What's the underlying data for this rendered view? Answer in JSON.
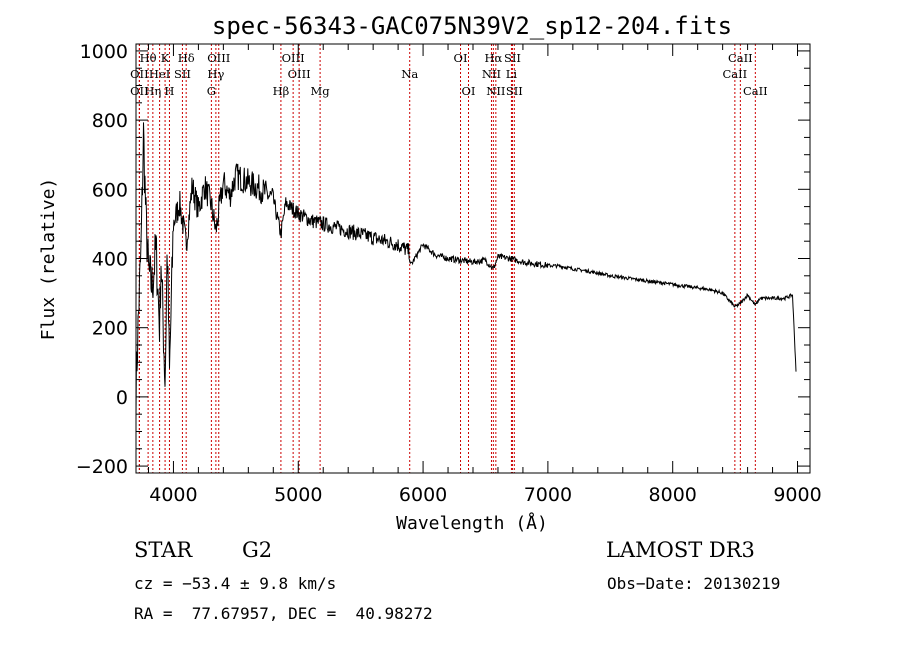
{
  "chart_data": {
    "type": "line",
    "title": "spec-56343-GAC075N39V2_sp12-204.fits",
    "xlabel": "Wavelength (Å)",
    "ylabel": "Flux (relative)",
    "xlim": [
      3700,
      9100
    ],
    "ylim": [
      -220,
      1020
    ],
    "xticks": [
      4000,
      5000,
      6000,
      7000,
      8000,
      9000
    ],
    "yticks": [
      -200,
      0,
      200,
      400,
      600,
      800,
      1000
    ],
    "xtick_labels": [
      "4000",
      "5000",
      "6000",
      "7000",
      "8000",
      "9000"
    ],
    "ytick_labels": [
      "−200",
      "0",
      "200",
      "400",
      "600",
      "800",
      "1000"
    ],
    "series": [
      {
        "name": "spectrum",
        "x": [
          3700,
          3720,
          3740,
          3760,
          3780,
          3800,
          3830,
          3860,
          3889,
          3900,
          3933,
          3950,
          3968,
          4000,
          4050,
          4102,
          4150,
          4200,
          4250,
          4300,
          4340,
          4400,
          4450,
          4500,
          4600,
          4700,
          4800,
          4861,
          4900,
          5000,
          5100,
          5200,
          5300,
          5400,
          5500,
          5600,
          5700,
          5800,
          5890,
          5900,
          6000,
          6100,
          6200,
          6300,
          6400,
          6500,
          6563,
          6600,
          6700,
          6800,
          6900,
          7000,
          7100,
          7200,
          7300,
          7400,
          7500,
          7600,
          7700,
          7800,
          7900,
          8000,
          8100,
          8200,
          8300,
          8400,
          8498,
          8542,
          8600,
          8662,
          8700,
          8800,
          8900,
          8960,
          8990
        ],
        "values": [
          20,
          240,
          420,
          760,
          510,
          360,
          320,
          430,
          200,
          400,
          40,
          440,
          60,
          500,
          560,
          440,
          610,
          540,
          610,
          560,
          480,
          620,
          580,
          640,
          620,
          600,
          570,
          470,
          560,
          530,
          510,
          500,
          490,
          480,
          470,
          460,
          450,
          440,
          420,
          380,
          440,
          410,
          400,
          395,
          390,
          395,
          370,
          405,
          400,
          390,
          385,
          380,
          378,
          370,
          365,
          358,
          350,
          345,
          340,
          335,
          330,
          325,
          320,
          315,
          310,
          300,
          260,
          270,
          295,
          265,
          285,
          285,
          285,
          295,
          60
        ]
      }
    ],
    "line_labels": [
      {
        "name": "Hθ",
        "x": 3797,
        "row": 1
      },
      {
        "name": "K",
        "x": 3933,
        "row": 1
      },
      {
        "name": "Hδ",
        "x": 4102,
        "row": 1
      },
      {
        "name": "OIII",
        "x": 4363,
        "row": 1
      },
      {
        "name": "OIII",
        "x": 4959,
        "row": 1
      },
      {
        "name": "OI",
        "x": 6300,
        "row": 1
      },
      {
        "name": "Hα",
        "x": 6563,
        "row": 1
      },
      {
        "name": "SII",
        "x": 6716,
        "row": 1
      },
      {
        "name": "CaII",
        "x": 8542,
        "row": 1
      },
      {
        "name": "OII",
        "x": 3727,
        "row": 2
      },
      {
        "name": "HeI",
        "x": 3889,
        "row": 2
      },
      {
        "name": "SII",
        "x": 4072,
        "row": 2
      },
      {
        "name": "Hγ",
        "x": 4340,
        "row": 2
      },
      {
        "name": "OIII",
        "x": 5007,
        "row": 2
      },
      {
        "name": "Na",
        "x": 5893,
        "row": 2
      },
      {
        "name": "NII",
        "x": 6548,
        "row": 2
      },
      {
        "name": "Li",
        "x": 6708,
        "row": 2
      },
      {
        "name": "CaII",
        "x": 8498,
        "row": 2
      },
      {
        "name": "OII",
        "x": 3727,
        "row": 3
      },
      {
        "name": "Hη",
        "x": 3835,
        "row": 3
      },
      {
        "name": "H",
        "x": 3968,
        "row": 3
      },
      {
        "name": "G",
        "x": 4304,
        "row": 3
      },
      {
        "name": "Hβ",
        "x": 4861,
        "row": 3
      },
      {
        "name": "Mg",
        "x": 5175,
        "row": 3
      },
      {
        "name": "OI",
        "x": 6364,
        "row": 3
      },
      {
        "name": "NII",
        "x": 6583,
        "row": 3
      },
      {
        "name": "SII",
        "x": 6731,
        "row": 3
      },
      {
        "name": "CaII",
        "x": 8662,
        "row": 3
      }
    ],
    "line_color": "#000000",
    "marker_color": "#cc0000"
  },
  "info": {
    "class": "STAR",
    "subclass": "G2",
    "survey": "LAMOST DR3",
    "cz": "cz = −53.4 ± 9.8 km/s",
    "obs_date": "Obs−Date: 20130219",
    "coords": "RA =  77.67957, DEC =  40.98272"
  }
}
